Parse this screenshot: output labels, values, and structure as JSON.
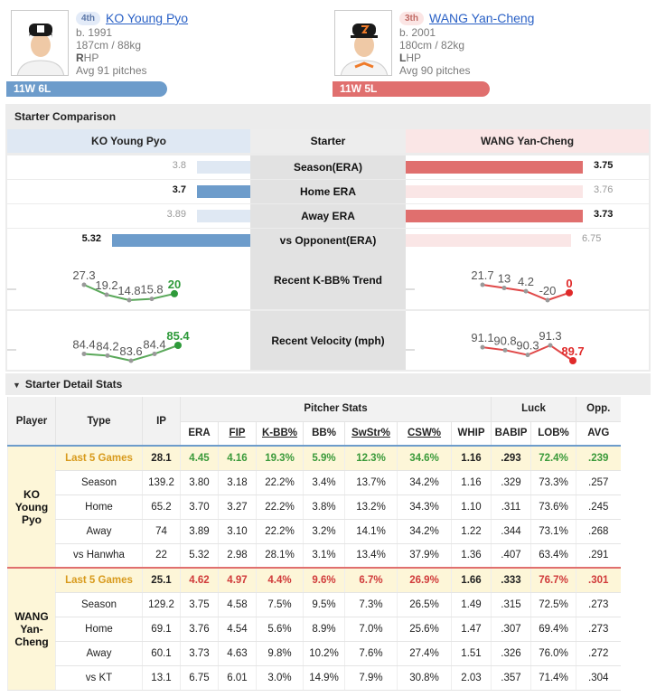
{
  "players": {
    "left": {
      "rank": "4th",
      "name": "KO Young Pyo",
      "born": "b. 1991",
      "body": "187cm / 88kg",
      "hand_initial": "R",
      "hand_rest": "HP",
      "avg_pitches": "Avg 91 pitches",
      "record": "11W 6L",
      "photo_icon": "player-photo-icon"
    },
    "right": {
      "rank": "3th",
      "name": "WANG Yan-Cheng",
      "born": "b. 2001",
      "body": "180cm / 82kg",
      "hand_initial": "L",
      "hand_rest": "HP",
      "avg_pitches": "Avg 90 pitches",
      "record": "11W 5L",
      "photo_icon": "player-photo-icon"
    }
  },
  "comparison": {
    "title": "Starter Comparison",
    "header": {
      "left": "KO Young Pyo",
      "mid": "Starter",
      "right": "WANG Yan-Cheng"
    },
    "colors": {
      "left": "#6d9ccb",
      "left_light": "#dfe8f3",
      "right": "#e06f6e",
      "right_light": "#fae6e6"
    },
    "rows": [
      {
        "label": "Season(ERA)",
        "left": "3.8",
        "right": "3.75",
        "left_bar": 0.22,
        "right_bar": 0.73,
        "winner": "right"
      },
      {
        "label": "Home ERA",
        "left": "3.7",
        "right": "3.76",
        "left_bar": 0.22,
        "right_bar": 0.73,
        "winner": "left"
      },
      {
        "label": "Away ERA",
        "left": "3.89",
        "right": "3.73",
        "left_bar": 0.22,
        "right_bar": 0.73,
        "winner": "right"
      },
      {
        "label": "vs Opponent(ERA)",
        "left": "5.32",
        "right": "6.75",
        "left_bar": 0.57,
        "right_bar": 0.68,
        "winner": "left"
      }
    ],
    "trend": {
      "label": "Recent K-BB% Trend",
      "left_values": [
        27.3,
        19.2,
        14.8,
        15.8,
        20
      ],
      "left_labels": [
        "27.3",
        "19.2",
        "14.8",
        "15.8",
        "20"
      ],
      "right_values": [
        21.7,
        13,
        4.2,
        -20,
        0
      ],
      "right_labels": [
        "21.7",
        "13",
        "4.2",
        "-20",
        "0"
      ]
    },
    "velocity": {
      "label": "Recent Velocity (mph)",
      "left_values": [
        84.4,
        84.2,
        83.6,
        84.4,
        85.4
      ],
      "left_labels": [
        "84.4",
        "84.2",
        "83.6",
        "84.4",
        "85.4"
      ],
      "right_values": [
        91.1,
        90.8,
        90.3,
        91.3,
        89.7
      ],
      "right_labels": [
        "91.1",
        "90.8",
        "90.3",
        "91.3",
        "89.7"
      ]
    }
  },
  "detail": {
    "title": "Starter Detail Stats",
    "headers": {
      "player": "Player",
      "type": "Type",
      "ip": "IP",
      "pitcher_stats": "Pitcher Stats",
      "luck": "Luck",
      "opp": "Opp.",
      "cols": [
        "ERA",
        "FIP",
        "K-BB%",
        "BB%",
        "SwStr%",
        "CSW%",
        "WHIP",
        "BABIP",
        "LOB%",
        "AVG"
      ]
    },
    "groups": [
      {
        "player": "KO Young Pyo",
        "side": "l",
        "rows": [
          [
            "Last 5 Games",
            "28.1",
            "4.45",
            "4.16",
            "19.3%",
            "5.9%",
            "12.3%",
            "34.6%",
            "1.16",
            ".293",
            "72.4%",
            ".239"
          ],
          [
            "Season",
            "139.2",
            "3.80",
            "3.18",
            "22.2%",
            "3.4%",
            "13.7%",
            "34.2%",
            "1.16",
            ".329",
            "73.3%",
            ".257"
          ],
          [
            "Home",
            "65.2",
            "3.70",
            "3.27",
            "22.2%",
            "3.8%",
            "13.2%",
            "34.3%",
            "1.10",
            ".311",
            "73.6%",
            ".245"
          ],
          [
            "Away",
            "74",
            "3.89",
            "3.10",
            "22.2%",
            "3.2%",
            "14.1%",
            "34.2%",
            "1.22",
            ".344",
            "73.1%",
            ".268"
          ],
          [
            "vs Hanwha",
            "22",
            "5.32",
            "2.98",
            "28.1%",
            "3.1%",
            "13.4%",
            "37.9%",
            "1.36",
            ".407",
            "63.4%",
            ".291"
          ]
        ]
      },
      {
        "player": "WANG Yan-Cheng",
        "side": "r",
        "rows": [
          [
            "Last 5 Games",
            "25.1",
            "4.62",
            "4.97",
            "4.4%",
            "9.6%",
            "6.7%",
            "26.9%",
            "1.66",
            ".333",
            "76.7%",
            ".301"
          ],
          [
            "Season",
            "129.2",
            "3.75",
            "4.58",
            "7.5%",
            "9.5%",
            "7.3%",
            "26.5%",
            "1.49",
            ".315",
            "72.5%",
            ".273"
          ],
          [
            "Home",
            "69.1",
            "3.76",
            "4.54",
            "5.6%",
            "8.9%",
            "7.0%",
            "25.6%",
            "1.47",
            ".307",
            "69.4%",
            ".273"
          ],
          [
            "Away",
            "60.1",
            "3.73",
            "4.63",
            "9.8%",
            "10.2%",
            "7.6%",
            "27.4%",
            "1.51",
            ".326",
            "76.0%",
            ".272"
          ],
          [
            "vs KT",
            "13.1",
            "6.75",
            "6.01",
            "3.0%",
            "14.9%",
            "7.9%",
            "30.8%",
            "2.03",
            ".357",
            "71.4%",
            ".304"
          ]
        ]
      }
    ]
  }
}
